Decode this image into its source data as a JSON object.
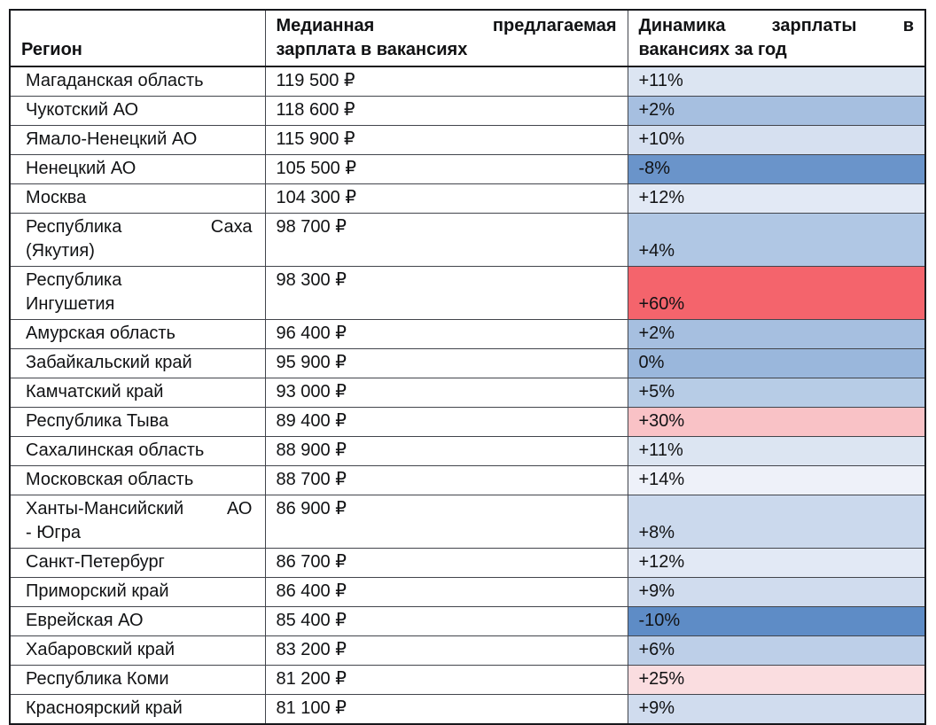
{
  "table": {
    "header": [
      {
        "id": "region",
        "lines": [
          "Регион"
        ]
      },
      {
        "id": "salary",
        "lines": [
          "Медианная предлагаемая",
          "зарплата в вакансиях"
        ]
      },
      {
        "id": "dynamics",
        "lines": [
          "Динамика зарплаты в",
          "вакансиях за год"
        ]
      }
    ],
    "rows": [
      {
        "region_lines": [
          "Магаданская область"
        ],
        "salary": "119 500 ₽",
        "dynamics": "+11%",
        "dynamics_bg": "#dce5f2"
      },
      {
        "region_lines": [
          "Чукотский АО"
        ],
        "salary": "118 600 ₽",
        "dynamics": "+2%",
        "dynamics_bg": "#a6bfe0"
      },
      {
        "region_lines": [
          "Ямало-Ненецкий АО"
        ],
        "salary": "115 900 ₽",
        "dynamics": "+10%",
        "dynamics_bg": "#d6e0f0"
      },
      {
        "region_lines": [
          "Ненецкий АО"
        ],
        "salary": "105 500 ₽",
        "dynamics": "-8%",
        "dynamics_bg": "#6a94ca"
      },
      {
        "region_lines": [
          "Москва"
        ],
        "salary": "104 300 ₽",
        "dynamics": "+12%",
        "dynamics_bg": "#e2e9f5"
      },
      {
        "region_lines": [
          "Республика Саха",
          "(Якутия)"
        ],
        "salary": "98 700 ₽",
        "dynamics": "+4%",
        "dynamics_bg": "#b0c7e4"
      },
      {
        "region_lines": [
          "Республика",
          "Ингушетия"
        ],
        "salary": "98 300 ₽",
        "dynamics": "+60%",
        "dynamics_bg": "#f4646c"
      },
      {
        "region_lines": [
          "Амурская область"
        ],
        "salary": "96 400 ₽",
        "dynamics": "+2%",
        "dynamics_bg": "#a6bfe0"
      },
      {
        "region_lines": [
          "Забайкальский край"
        ],
        "salary": "95 900 ₽",
        "dynamics": "0%",
        "dynamics_bg": "#9ab7dc"
      },
      {
        "region_lines": [
          "Камчатский край"
        ],
        "salary": "93 000 ₽",
        "dynamics": "+5%",
        "dynamics_bg": "#b7cce6"
      },
      {
        "region_lines": [
          "Республика Тыва"
        ],
        "salary": "89 400 ₽",
        "dynamics": "+30%",
        "dynamics_bg": "#f9c2c6"
      },
      {
        "region_lines": [
          "Сахалинская область"
        ],
        "salary": "88 900 ₽",
        "dynamics": "+11%",
        "dynamics_bg": "#dce5f2"
      },
      {
        "region_lines": [
          "Московская область"
        ],
        "salary": "88 700 ₽",
        "dynamics": "+14%",
        "dynamics_bg": "#eef1f9"
      },
      {
        "region_lines": [
          "Ханты-Мансийский АО",
          "- Югра"
        ],
        "salary": "86 900 ₽",
        "dynamics": "+8%",
        "dynamics_bg": "#cbd9ed"
      },
      {
        "region_lines": [
          "Санкт-Петербург"
        ],
        "salary": "86 700 ₽",
        "dynamics": "+12%",
        "dynamics_bg": "#e2e9f5"
      },
      {
        "region_lines": [
          "Приморский край"
        ],
        "salary": "86 400 ₽",
        "dynamics": "+9%",
        "dynamics_bg": "#d0dcee"
      },
      {
        "region_lines": [
          "Еврейская АО"
        ],
        "salary": "85 400 ₽",
        "dynamics": "-10%",
        "dynamics_bg": "#5e8cc6"
      },
      {
        "region_lines": [
          "Хабаровский край"
        ],
        "salary": "83 200 ₽",
        "dynamics": "+6%",
        "dynamics_bg": "#bdcfe8"
      },
      {
        "region_lines": [
          "Республика Коми"
        ],
        "salary": "81 200 ₽",
        "dynamics": "+25%",
        "dynamics_bg": "#fadde0"
      },
      {
        "region_lines": [
          "Красноярский край"
        ],
        "salary": "81 100 ₽",
        "dynamics": "+9%",
        "dynamics_bg": "#d0dcee"
      }
    ],
    "colors": {
      "negative_extreme": "#5e8cc6",
      "neutral_midpoint": "#eef1f9",
      "positive_extreme": "#f4646c",
      "border_inner": "#42454c",
      "border_outer": "#17181c"
    }
  }
}
